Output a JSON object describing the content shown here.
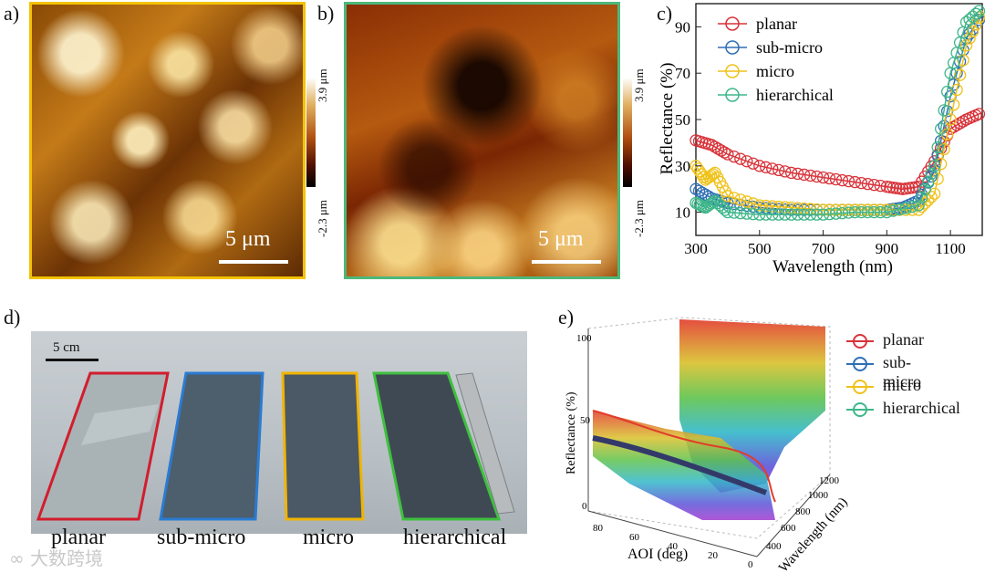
{
  "panel_labels": {
    "a": "a)",
    "b": "b)",
    "c": "c)",
    "d": "d)",
    "e": "e)"
  },
  "panel_a": {
    "scale_label": "5 μm",
    "colorbar_max": "3.9 μm",
    "colorbar_min": "-2.3 μm",
    "border_color": "#f2c200"
  },
  "panel_b": {
    "scale_label": "5 μm",
    "colorbar_max": "3.9 μm",
    "colorbar_min": "-2.3 μm",
    "border_color": "#4db87a"
  },
  "legend": [
    {
      "name": "planar",
      "color": "#d8333a"
    },
    {
      "name": "sub-micro",
      "color": "#2f6fb5"
    },
    {
      "name": "micro",
      "color": "#efc21a"
    },
    {
      "name": "hierarchical",
      "color": "#3fb68a"
    }
  ],
  "chart_data": [
    {
      "type": "line",
      "title": "",
      "xlabel": "Wavelength (nm)",
      "ylabel": "Reflectance (%)",
      "xlim": [
        300,
        1200
      ],
      "ylim": [
        0,
        100
      ],
      "xticks": [
        300,
        500,
        700,
        900,
        1100
      ],
      "yticks": [
        10,
        30,
        50,
        70,
        90
      ],
      "legend_position": "top-left",
      "series": [
        {
          "name": "planar",
          "x": [
            300,
            350,
            400,
            500,
            600,
            700,
            800,
            900,
            950,
            1000,
            1050,
            1100,
            1150,
            1200
          ],
          "y": [
            41,
            39,
            35,
            30,
            27,
            25,
            23,
            21,
            20,
            21,
            32,
            46,
            50,
            53
          ]
        },
        {
          "name": "sub-micro",
          "x": [
            300,
            350,
            400,
            500,
            600,
            700,
            800,
            900,
            950,
            1000,
            1050,
            1100,
            1150,
            1200
          ],
          "y": [
            20,
            16,
            14,
            12,
            11,
            11,
            11,
            11,
            12,
            15,
            28,
            60,
            85,
            95
          ]
        },
        {
          "name": "micro",
          "x": [
            300,
            330,
            360,
            400,
            500,
            600,
            700,
            800,
            900,
            1000,
            1050,
            1100,
            1150,
            1200
          ],
          "y": [
            30,
            24,
            27,
            17,
            13,
            12,
            11,
            11,
            11,
            11,
            18,
            50,
            82,
            97
          ]
        },
        {
          "name": "hierarchical",
          "x": [
            300,
            330,
            360,
            400,
            500,
            600,
            700,
            800,
            900,
            1000,
            1050,
            1100,
            1150,
            1200
          ],
          "y": [
            14,
            12,
            15,
            10,
            9,
            9,
            9,
            10,
            10,
            13,
            30,
            70,
            92,
            98
          ]
        }
      ]
    },
    {
      "type": "surface",
      "title": "",
      "xlabel": "AOI (deg)",
      "ylabel": "Wavelength (nm)",
      "zlabel": "Reflectance (%)",
      "xticks": [
        0,
        20,
        40,
        60,
        80
      ],
      "yticks": [
        400,
        600,
        800,
        1000,
        1200
      ],
      "zticks": [
        0,
        50,
        100
      ]
    }
  ],
  "panel_d": {
    "scale_label": "5 cm",
    "captions": [
      "planar",
      "sub-micro",
      "micro",
      "hierarchical"
    ]
  },
  "watermark": "大数跨境"
}
